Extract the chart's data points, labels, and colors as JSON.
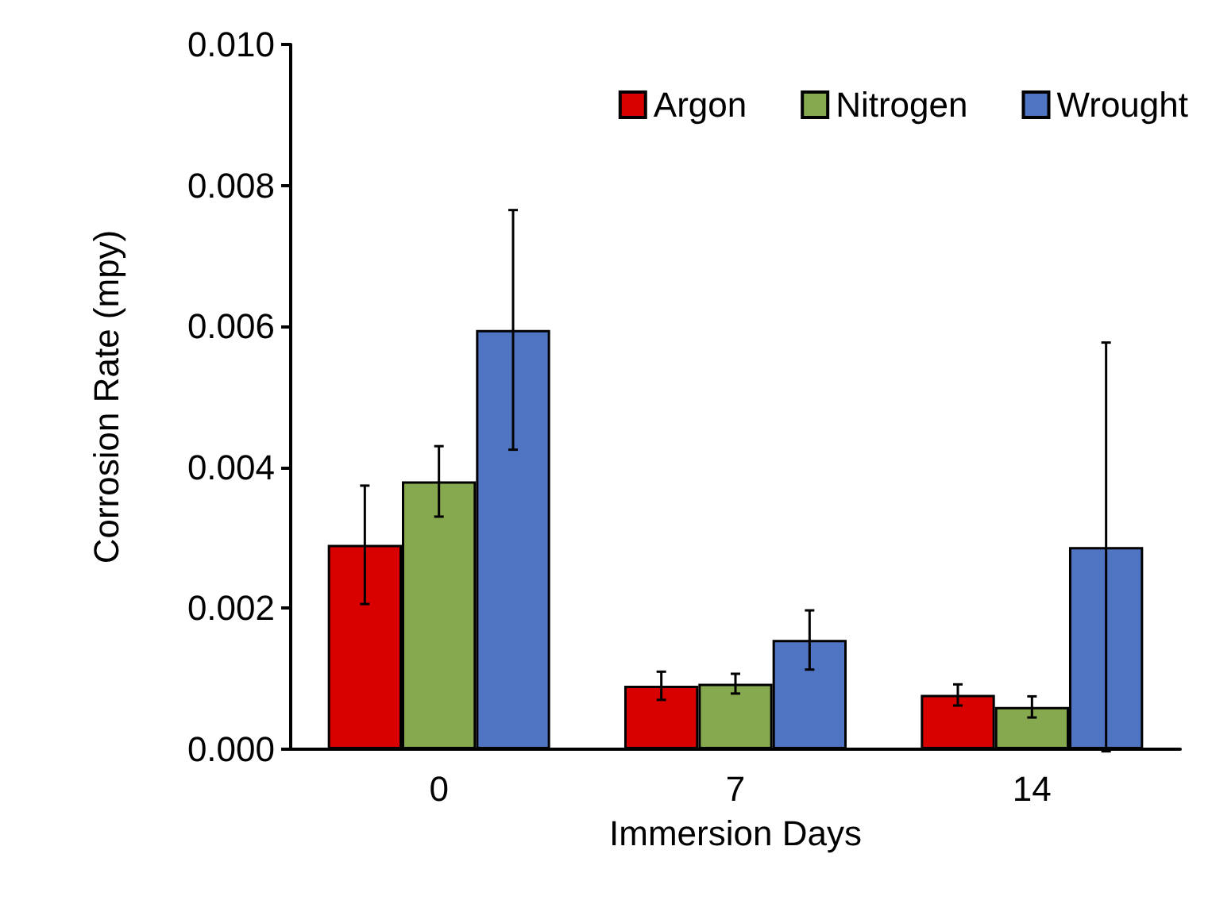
{
  "chart_data": {
    "type": "bar",
    "xlabel": "Immersion Days",
    "ylabel": "Corrosion Rate (mpy)",
    "categories": [
      "0",
      "7",
      "14"
    ],
    "series": [
      {
        "name": "Argon",
        "color": "#d90000",
        "values": [
          0.0029,
          0.0009,
          0.00077
        ],
        "errors": [
          0.00084,
          0.0002,
          0.00015
        ]
      },
      {
        "name": "Nitrogen",
        "color": "#86a84e",
        "values": [
          0.0038,
          0.00093,
          0.0006
        ],
        "errors": [
          0.0005,
          0.00014,
          0.00015
        ]
      },
      {
        "name": "Wrought",
        "color": "#4f74c2",
        "values": [
          0.00595,
          0.00155,
          0.00287
        ],
        "errors": [
          0.0017,
          0.00042,
          0.0029
        ]
      }
    ],
    "ylim": [
      0,
      0.01
    ],
    "yticks": [
      {
        "value": 0,
        "label": "0.000"
      },
      {
        "value": 0.002,
        "label": "0.002"
      },
      {
        "value": 0.004,
        "label": "0.004"
      },
      {
        "value": 0.006,
        "label": "0.006"
      },
      {
        "value": 0.008,
        "label": "0.008"
      },
      {
        "value": 0.01,
        "label": "0.010"
      }
    ],
    "grid": false,
    "legend": "top right"
  }
}
